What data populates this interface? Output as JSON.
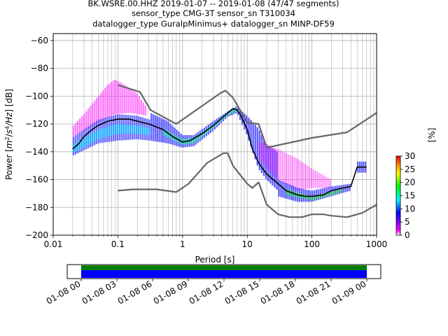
{
  "title": {
    "line1": "BK.WSRE.00.HHZ   2019-01-07 -- 2019-01-08  (47/47 segments)",
    "line2": "sensor_type CMG-3T sensor_sn T310034",
    "line3": "datalogger_type GuralpMinimus+ datalogger_sn MINP-DF59"
  },
  "chart_data": [
    {
      "type": "heatmap",
      "xlabel": "Period [s]",
      "ylabel_parts": [
        "Power [",
        "m",
        "2",
        "/",
        "s",
        "4",
        "/Hz",
        "] [dB]"
      ],
      "xscale": "log",
      "xlim": [
        0.01,
        1000
      ],
      "ylim": [
        -200,
        -55
      ],
      "xticks": [
        0.01,
        0.1,
        1,
        10,
        100,
        1000
      ],
      "xtick_labels": [
        "0.01",
        "0.1",
        "1",
        "10",
        "100",
        "1000"
      ],
      "yticks": [
        -200,
        -180,
        -160,
        -140,
        -120,
        -100,
        -80,
        -60
      ],
      "ytick_labels": [
        "−200",
        "−180",
        "−160",
        "−140",
        "−120",
        "−100",
        "−80",
        "−60"
      ],
      "grid": true,
      "colorbar": {
        "label": "[%]",
        "range": [
          0,
          30
        ],
        "ticks": [
          0,
          5,
          10,
          15,
          20,
          25,
          30
        ],
        "tick_labels": [
          "0",
          "5",
          "10",
          "15",
          "20",
          "25",
          "30"
        ],
        "colors": [
          "#ffffff",
          "#ff00ff",
          "#0000ff",
          "#00ffff",
          "#00ff00",
          "#ffff00",
          "#ff8000",
          "#ff0000"
        ]
      },
      "mode_curve": {
        "color": "#000000",
        "points": [
          [
            0.02,
            -138
          ],
          [
            0.025,
            -134
          ],
          [
            0.03,
            -129
          ],
          [
            0.04,
            -124
          ],
          [
            0.05,
            -121
          ],
          [
            0.07,
            -118
          ],
          [
            0.1,
            -116.5
          ],
          [
            0.15,
            -116.5
          ],
          [
            0.2,
            -118
          ],
          [
            0.3,
            -120
          ],
          [
            0.5,
            -124
          ],
          [
            0.7,
            -129
          ],
          [
            1,
            -133
          ],
          [
            1.3,
            -132
          ],
          [
            2,
            -127
          ],
          [
            3,
            -121
          ],
          [
            4,
            -116
          ],
          [
            5,
            -112
          ],
          [
            6,
            -109
          ],
          [
            7,
            -110
          ],
          [
            8,
            -114
          ],
          [
            10,
            -124
          ],
          [
            12,
            -138
          ],
          [
            15,
            -148
          ],
          [
            20,
            -156
          ],
          [
            30,
            -163
          ],
          [
            40,
            -168
          ],
          [
            60,
            -171
          ],
          [
            80,
            -172
          ],
          [
            100,
            -172
          ],
          [
            150,
            -171
          ],
          [
            200,
            -168
          ],
          [
            300,
            -166
          ],
          [
            400,
            -165
          ],
          [
            500,
            -151
          ],
          [
            600,
            -151
          ],
          [
            700,
            -151
          ]
        ]
      },
      "noise_models": {
        "color": "#666666",
        "high": [
          [
            0.1,
            -92
          ],
          [
            0.22,
            -97
          ],
          [
            0.32,
            -110
          ],
          [
            0.8,
            -120
          ],
          [
            3.8,
            -98
          ],
          [
            4.6,
            -96
          ],
          [
            6,
            -101
          ],
          [
            10,
            -119
          ],
          [
            15,
            -120
          ],
          [
            20,
            -137
          ],
          [
            100,
            -130
          ],
          [
            350,
            -126
          ],
          [
            1000,
            -112
          ]
        ],
        "low": [
          [
            0.1,
            -168
          ],
          [
            0.17,
            -167
          ],
          [
            0.4,
            -167
          ],
          [
            0.8,
            -169
          ],
          [
            1.24,
            -163
          ],
          [
            2.4,
            -148
          ],
          [
            4.3,
            -141
          ],
          [
            5,
            -141
          ],
          [
            6,
            -150
          ],
          [
            10,
            -163
          ],
          [
            12,
            -166
          ],
          [
            15,
            -162
          ],
          [
            20,
            -178
          ],
          [
            30,
            -185
          ],
          [
            45,
            -187
          ],
          [
            70,
            -187
          ],
          [
            100,
            -185
          ],
          [
            150,
            -185
          ],
          [
            200,
            -186
          ],
          [
            350,
            -187
          ],
          [
            600,
            -184
          ],
          [
            1000,
            -178
          ]
        ]
      },
      "density_bands": [
        {
          "name": "upper-spread",
          "pmin": 0.02,
          "pmax": 0.28,
          "top": [
            [
              0.02,
              -122
            ],
            [
              0.03,
              -113
            ],
            [
              0.05,
              -100
            ],
            [
              0.07,
              -92
            ],
            [
              0.09,
              -88
            ],
            [
              0.12,
              -91
            ],
            [
              0.2,
              -98
            ],
            [
              0.28,
              -108
            ]
          ],
          "bottom": [
            [
              0.02,
              -130
            ],
            [
              0.03,
              -125
            ],
            [
              0.05,
              -119
            ],
            [
              0.09,
              -113
            ],
            [
              0.15,
              -112
            ],
            [
              0.28,
              -114
            ]
          ],
          "color": "#ff00ff",
          "opacity": 0.5
        },
        {
          "name": "primary-band",
          "pmin": 0.02,
          "pmax": 0.32,
          "top": [
            [
              0.02,
              -130
            ],
            [
              0.03,
              -124
            ],
            [
              0.05,
              -117
            ],
            [
              0.1,
              -113
            ],
            [
              0.2,
              -114
            ],
            [
              0.32,
              -117
            ]
          ],
          "bottom": [
            [
              0.02,
              -143
            ],
            [
              0.03,
              -139
            ],
            [
              0.05,
              -134
            ],
            [
              0.1,
              -132
            ],
            [
              0.2,
              -131
            ],
            [
              0.32,
              -132
            ]
          ],
          "color": "#4040ff",
          "opacity": 0.75
        },
        {
          "name": "primary-core",
          "pmin": 0.02,
          "pmax": 0.32,
          "top": [
            [
              0.02,
              -135
            ],
            [
              0.03,
              -130
            ],
            [
              0.05,
              -124
            ],
            [
              0.1,
              -120
            ],
            [
              0.2,
              -121
            ],
            [
              0.32,
              -123
            ]
          ],
          "bottom": [
            [
              0.02,
              -141
            ],
            [
              0.03,
              -137
            ],
            [
              0.05,
              -131
            ],
            [
              0.1,
              -127
            ],
            [
              0.2,
              -127
            ],
            [
              0.32,
              -128
            ]
          ],
          "color": "#00e0ff",
          "opacity": 0.6
        },
        {
          "name": "mid-band",
          "pmin": 0.32,
          "pmax": 7,
          "top": [
            [
              0.32,
              -112
            ],
            [
              0.6,
              -118
            ],
            [
              1,
              -128
            ],
            [
              1.5,
              -128
            ],
            [
              3,
              -118
            ],
            [
              5,
              -111
            ],
            [
              7,
              -107
            ]
          ],
          "bottom": [
            [
              0.32,
              -132
            ],
            [
              0.6,
              -134
            ],
            [
              1,
              -137
            ],
            [
              1.5,
              -136
            ],
            [
              3,
              -125
            ],
            [
              5,
              -115
            ],
            [
              7,
              -112
            ]
          ],
          "color": "#3030ff",
          "opacity": 0.75
        },
        {
          "name": "mid-core",
          "pmin": 0.5,
          "pmax": 7,
          "top": [
            [
              0.5,
              -123
            ],
            [
              1,
              -131
            ],
            [
              1.5,
              -130
            ],
            [
              3,
              -120
            ],
            [
              5,
              -112
            ],
            [
              7,
              -108
            ]
          ],
          "bottom": [
            [
              0.5,
              -128
            ],
            [
              1,
              -135
            ],
            [
              1.5,
              -134
            ],
            [
              3,
              -123
            ],
            [
              5,
              -114
            ],
            [
              7,
              -111
            ]
          ],
          "color": "#00ff80",
          "opacity": 0.55
        },
        {
          "name": "microseism",
          "pmin": 7,
          "pmax": 30,
          "top": [
            [
              7,
              -108
            ],
            [
              10,
              -114
            ],
            [
              15,
              -123
            ],
            [
              20,
              -135
            ],
            [
              30,
              -140
            ]
          ],
          "bottom": [
            [
              7,
              -112
            ],
            [
              10,
              -128
            ],
            [
              15,
              -152
            ],
            [
              20,
              -160
            ],
            [
              30,
              -168
            ]
          ],
          "color": "#3030ff",
          "opacity": 0.75
        },
        {
          "name": "upper-long",
          "pmin": 15,
          "pmax": 200,
          "top": [
            [
              15,
              -132
            ],
            [
              30,
              -138
            ],
            [
              60,
              -145
            ],
            [
              100,
              -152
            ],
            [
              200,
              -160
            ]
          ],
          "bottom": [
            [
              15,
              -145
            ],
            [
              30,
              -160
            ],
            [
              60,
              -168
            ],
            [
              100,
              -166
            ],
            [
              200,
              -166
            ]
          ],
          "color": "#ff00ff",
          "opacity": 0.4
        },
        {
          "name": "long-band",
          "pmin": 30,
          "pmax": 400,
          "top": [
            [
              30,
              -160
            ],
            [
              60,
              -166
            ],
            [
              100,
              -168
            ],
            [
              200,
              -165
            ],
            [
              400,
              -163
            ]
          ],
          "bottom": [
            [
              30,
              -172
            ],
            [
              60,
              -176
            ],
            [
              100,
              -176
            ],
            [
              200,
              -172
            ],
            [
              400,
              -168
            ]
          ],
          "color": "#3030ff",
          "opacity": 0.75
        },
        {
          "name": "long-core",
          "pmin": 40,
          "pmax": 300,
          "top": [
            [
              40,
              -167
            ],
            [
              100,
              -172
            ],
            [
              300,
              -167
            ]
          ],
          "bottom": [
            [
              40,
              -171
            ],
            [
              100,
              -175
            ],
            [
              300,
              -169
            ]
          ],
          "color": "#00ff00",
          "opacity": 0.5
        },
        {
          "name": "very-long",
          "pmin": 500,
          "pmax": 700,
          "top": [
            [
              500,
              -147
            ],
            [
              700,
              -147
            ]
          ],
          "bottom": [
            [
              500,
              -155
            ],
            [
              700,
              -155
            ]
          ],
          "color": "#3030ff",
          "opacity": 0.75
        }
      ]
    },
    {
      "type": "bar",
      "name": "data-coverage",
      "xtick_labels": [
        "01-08 00",
        "01-08 03",
        "01-08 06",
        "01-08 09",
        "01-08 12",
        "01-08 15",
        "01-08 18",
        "01-08 21",
        "01-09 00"
      ],
      "coverage_color": "#0000ff",
      "stat_color": "#008000"
    }
  ]
}
